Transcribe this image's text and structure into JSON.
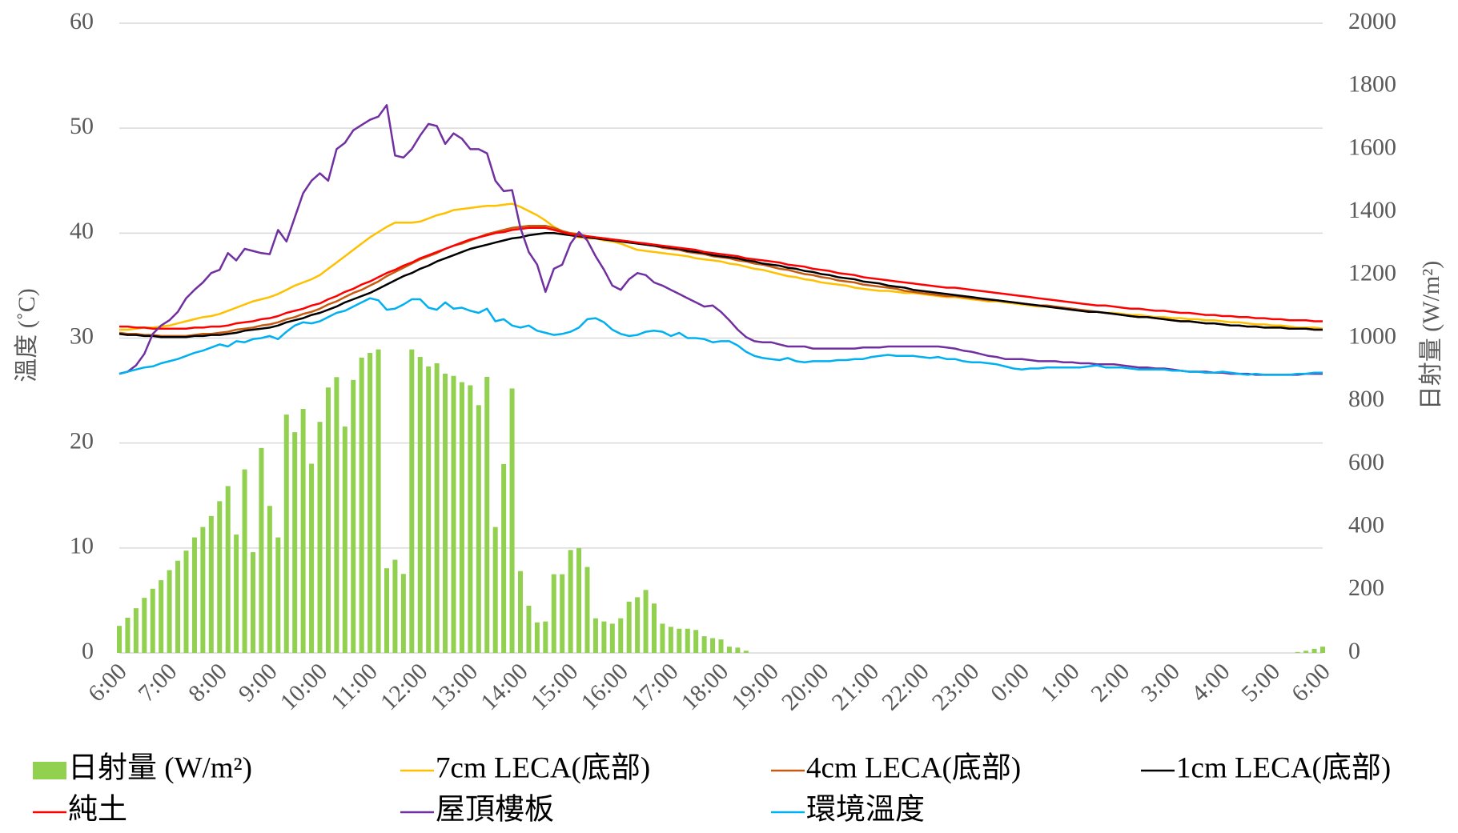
{
  "chart_data": {
    "type": "line",
    "ylabel": "溫度 (˚C)",
    "y2label": "日射量 (W/m²)",
    "ylim": [
      0,
      60
    ],
    "yticks": [
      0,
      10,
      20,
      30,
      40,
      50,
      60
    ],
    "y2lim": [
      0,
      2000
    ],
    "y2ticks": [
      0,
      200,
      400,
      600,
      800,
      1000,
      1200,
      1400,
      1600,
      1800,
      2000
    ],
    "grid": true,
    "legend": "bottom",
    "categories": [
      "6:00",
      null,
      null,
      null,
      null,
      null,
      "7:00",
      null,
      null,
      null,
      null,
      null,
      "8:00",
      null,
      null,
      null,
      null,
      null,
      "9:00",
      null,
      null,
      null,
      null,
      null,
      "10:00",
      null,
      null,
      null,
      null,
      null,
      "11:00",
      null,
      null,
      null,
      null,
      null,
      "12:00",
      null,
      null,
      null,
      null,
      null,
      "13:00",
      null,
      null,
      null,
      null,
      null,
      "14:00",
      null,
      null,
      null,
      null,
      null,
      "15:00",
      null,
      null,
      null,
      null,
      null,
      "16:00",
      null,
      null,
      null,
      null,
      null,
      "17:00",
      null,
      null,
      null,
      null,
      null,
      "18:00",
      null,
      null,
      null,
      null,
      null,
      "19:00",
      null,
      null,
      null,
      null,
      null,
      "20:00",
      null,
      null,
      null,
      null,
      null,
      "21:00",
      null,
      null,
      null,
      null,
      null,
      "22:00",
      null,
      null,
      null,
      null,
      null,
      "23:00",
      null,
      null,
      null,
      null,
      null,
      "0:00",
      null,
      null,
      null,
      null,
      null,
      "1:00",
      null,
      null,
      null,
      null,
      null,
      "2:00",
      null,
      null,
      null,
      null,
      null,
      "3:00",
      null,
      null,
      null,
      null,
      null,
      "4:00",
      null,
      null,
      null,
      null,
      null,
      "5:00",
      null,
      null,
      null,
      null,
      null,
      "6:00"
    ],
    "series": [
      {
        "name": "日射量 (W/m²)",
        "type": "bar",
        "axis": "y2",
        "color": "#92d050",
        "values": [
          86,
          112,
          142,
          175,
          204,
          231,
          263,
          293,
          325,
          367,
          400,
          435,
          482,
          530,
          376,
          583,
          320,
          651,
          467,
          367,
          757,
          701,
          775,
          601,
          734,
          843,
          876,
          719,
          867,
          938,
          953,
          964,
          269,
          296,
          251,
          964,
          940,
          910,
          920,
          887,
          880,
          860,
          850,
          787,
          877,
          400,
          600,
          840,
          260,
          150,
          97,
          100,
          250,
          250,
          327,
          333,
          273,
          110,
          100,
          93,
          110,
          163,
          177,
          200,
          157,
          93,
          83,
          77,
          77,
          73,
          53,
          47,
          43,
          20,
          17,
          7,
          0,
          0,
          0,
          0,
          0,
          0,
          0,
          0,
          0,
          0,
          0,
          0,
          0,
          0,
          0,
          0,
          0,
          0,
          0,
          0,
          0,
          0,
          0,
          0,
          0,
          0,
          0,
          0,
          0,
          0,
          0,
          0,
          0,
          0,
          0,
          0,
          0,
          0,
          0,
          0,
          0,
          0,
          0,
          0,
          0,
          0,
          0,
          0,
          0,
          0,
          0,
          0,
          0,
          0,
          0,
          0,
          0,
          0,
          0,
          0,
          0,
          0,
          0,
          0,
          0,
          3,
          7,
          13,
          20
        ]
      },
      {
        "name": "7cm LECA(底部)",
        "type": "line",
        "color": "#ffc000",
        "values": [
          30.8,
          30.8,
          30.9,
          31.0,
          31.0,
          31.1,
          31.2,
          31.4,
          31.6,
          31.8,
          32.0,
          32.1,
          32.3,
          32.6,
          32.9,
          33.2,
          33.5,
          33.7,
          33.9,
          34.2,
          34.6,
          35.0,
          35.3,
          35.6,
          36.0,
          36.6,
          37.2,
          37.8,
          38.4,
          39.0,
          39.6,
          40.1,
          40.6,
          41.0,
          41.0,
          41.0,
          41.1,
          41.4,
          41.7,
          41.9,
          42.2,
          42.3,
          42.4,
          42.5,
          42.6,
          42.6,
          42.7,
          42.8,
          42.5,
          42.1,
          41.7,
          41.2,
          40.6,
          40.2,
          39.8,
          39.6,
          39.5,
          39.5,
          39.3,
          39.2,
          39.0,
          38.7,
          38.4,
          38.3,
          38.2,
          38.1,
          38.0,
          37.9,
          37.8,
          37.6,
          37.5,
          37.4,
          37.3,
          37.1,
          37.0,
          36.8,
          36.6,
          36.5,
          36.3,
          36.1,
          35.9,
          35.8,
          35.6,
          35.5,
          35.3,
          35.2,
          35.1,
          35.0,
          34.8,
          34.7,
          34.6,
          34.5,
          34.5,
          34.4,
          34.3,
          34.3,
          34.2,
          34.1,
          34.0,
          33.9,
          33.9,
          33.8,
          33.7,
          33.6,
          33.5,
          33.5,
          33.4,
          33.3,
          33.2,
          33.1,
          33.0,
          33.0,
          32.9,
          32.8,
          32.7,
          32.6,
          32.6,
          32.5,
          32.4,
          32.4,
          32.3,
          32.2,
          32.2,
          32.1,
          32.0,
          32.0,
          31.9,
          31.9,
          31.8,
          31.8,
          31.7,
          31.7,
          31.6,
          31.5,
          31.5,
          31.4,
          31.3,
          31.3,
          31.2,
          31.2,
          31.1,
          31.0,
          31.0,
          31.0,
          30.9
        ]
      },
      {
        "name": "4cm LECA(底部)",
        "type": "line",
        "color": "#c55a11",
        "values": [
          30.5,
          30.4,
          30.4,
          30.3,
          30.3,
          30.2,
          30.2,
          30.2,
          30.2,
          30.3,
          30.4,
          30.4,
          30.5,
          30.6,
          30.8,
          30.9,
          31.0,
          31.2,
          31.3,
          31.5,
          31.8,
          32.0,
          32.3,
          32.5,
          32.8,
          33.2,
          33.5,
          33.9,
          34.3,
          34.6,
          35.0,
          35.4,
          35.9,
          36.3,
          36.7,
          37.1,
          37.5,
          37.8,
          38.1,
          38.5,
          38.8,
          39.0,
          39.3,
          39.6,
          39.9,
          40.1,
          40.3,
          40.5,
          40.6,
          40.7,
          40.7,
          40.7,
          40.5,
          40.2,
          40.0,
          39.9,
          39.7,
          39.6,
          39.5,
          39.4,
          39.3,
          39.2,
          39.0,
          38.9,
          38.8,
          38.6,
          38.5,
          38.4,
          38.2,
          38.1,
          38.0,
          37.8,
          37.7,
          37.6,
          37.4,
          37.3,
          37.1,
          37.0,
          36.8,
          36.6,
          36.5,
          36.3,
          36.1,
          36.0,
          35.8,
          35.7,
          35.5,
          35.4,
          35.3,
          35.1,
          35.0,
          34.9,
          34.8,
          34.7,
          34.5,
          34.4,
          34.3,
          34.2,
          34.1,
          34.0,
          34.0,
          33.9,
          33.8,
          33.7,
          33.6,
          33.6,
          33.5,
          33.4,
          33.3,
          33.2,
          33.1,
          33.1,
          33.0,
          32.9,
          32.8,
          32.7,
          32.6,
          32.5,
          32.4,
          32.3,
          32.2,
          32.1,
          32.0,
          32.0,
          31.9,
          31.8,
          31.7,
          31.6,
          31.6,
          31.5,
          31.4,
          31.4,
          31.3,
          31.2,
          31.2,
          31.1,
          31.1,
          31.0,
          31.0,
          31.0,
          30.9,
          30.9,
          30.9,
          30.8,
          30.8
        ]
      },
      {
        "name": "1cm LECA(底部)",
        "type": "line",
        "color": "#000000",
        "values": [
          30.4,
          30.3,
          30.3,
          30.2,
          30.2,
          30.1,
          30.1,
          30.1,
          30.1,
          30.2,
          30.2,
          30.3,
          30.3,
          30.4,
          30.5,
          30.7,
          30.8,
          30.9,
          31.0,
          31.2,
          31.5,
          31.7,
          31.9,
          32.2,
          32.4,
          32.7,
          33.0,
          33.4,
          33.7,
          34.0,
          34.3,
          34.7,
          35.1,
          35.5,
          35.9,
          36.2,
          36.6,
          36.9,
          37.3,
          37.6,
          37.9,
          38.2,
          38.5,
          38.7,
          38.9,
          39.1,
          39.3,
          39.5,
          39.6,
          39.8,
          39.9,
          40.0,
          40.0,
          39.9,
          39.8,
          39.7,
          39.6,
          39.5,
          39.4,
          39.3,
          39.2,
          39.1,
          39.0,
          38.9,
          38.8,
          38.7,
          38.6,
          38.5,
          38.3,
          38.2,
          38.1,
          37.9,
          37.8,
          37.7,
          37.6,
          37.4,
          37.3,
          37.1,
          37.0,
          36.9,
          36.7,
          36.6,
          36.4,
          36.3,
          36.1,
          36.0,
          35.8,
          35.7,
          35.6,
          35.4,
          35.3,
          35.2,
          35.0,
          34.9,
          34.8,
          34.6,
          34.5,
          34.4,
          34.3,
          34.2,
          34.1,
          34.0,
          33.9,
          33.8,
          33.7,
          33.6,
          33.5,
          33.4,
          33.3,
          33.2,
          33.1,
          33.0,
          32.9,
          32.8,
          32.7,
          32.6,
          32.5,
          32.5,
          32.4,
          32.3,
          32.2,
          32.1,
          32.0,
          32.0,
          31.9,
          31.8,
          31.7,
          31.6,
          31.6,
          31.5,
          31.4,
          31.4,
          31.3,
          31.2,
          31.2,
          31.1,
          31.1,
          31.0,
          31.0,
          31.0,
          30.9,
          30.9,
          30.9,
          30.8,
          30.8
        ]
      },
      {
        "name": "純土",
        "type": "line",
        "color": "#ff0000",
        "values": [
          31.1,
          31.1,
          31.0,
          31.0,
          30.9,
          30.9,
          30.9,
          30.9,
          30.9,
          31.0,
          31.0,
          31.1,
          31.1,
          31.2,
          31.4,
          31.5,
          31.6,
          31.8,
          31.9,
          32.1,
          32.4,
          32.6,
          32.8,
          33.1,
          33.3,
          33.7,
          34.0,
          34.4,
          34.7,
          35.1,
          35.4,
          35.8,
          36.2,
          36.5,
          36.9,
          37.2,
          37.6,
          37.9,
          38.2,
          38.5,
          38.8,
          39.1,
          39.4,
          39.6,
          39.8,
          40.0,
          40.1,
          40.3,
          40.4,
          40.5,
          40.5,
          40.5,
          40.3,
          40.1,
          39.9,
          39.8,
          39.7,
          39.6,
          39.5,
          39.4,
          39.3,
          39.2,
          39.1,
          39.0,
          38.9,
          38.8,
          38.7,
          38.6,
          38.5,
          38.4,
          38.2,
          38.1,
          38.0,
          37.9,
          37.8,
          37.6,
          37.5,
          37.4,
          37.3,
          37.2,
          37.0,
          36.9,
          36.8,
          36.6,
          36.5,
          36.4,
          36.2,
          36.1,
          36.0,
          35.8,
          35.7,
          35.6,
          35.5,
          35.4,
          35.3,
          35.2,
          35.1,
          35.0,
          34.9,
          34.8,
          34.8,
          34.7,
          34.6,
          34.5,
          34.4,
          34.3,
          34.2,
          34.1,
          34.0,
          33.9,
          33.8,
          33.7,
          33.6,
          33.5,
          33.4,
          33.3,
          33.2,
          33.1,
          33.1,
          33.0,
          32.9,
          32.8,
          32.8,
          32.7,
          32.6,
          32.6,
          32.5,
          32.4,
          32.4,
          32.3,
          32.2,
          32.2,
          32.1,
          32.1,
          32.0,
          32.0,
          31.9,
          31.9,
          31.8,
          31.8,
          31.7,
          31.7,
          31.7,
          31.6,
          31.6
        ]
      },
      {
        "name": "屋頂樓板",
        "type": "line",
        "color": "#7030a0",
        "values": [
          26.6,
          26.8,
          27.4,
          28.5,
          30.4,
          31.2,
          31.7,
          32.5,
          33.8,
          34.6,
          35.3,
          36.2,
          36.5,
          38.1,
          37.4,
          38.5,
          38.3,
          38.1,
          38.0,
          40.3,
          39.2,
          41.5,
          43.8,
          45.0,
          45.7,
          45.0,
          48.0,
          48.6,
          49.8,
          50.3,
          50.8,
          51.1,
          52.2,
          47.4,
          47.2,
          48.0,
          49.3,
          50.4,
          50.2,
          48.5,
          49.5,
          49.0,
          48.0,
          48.0,
          47.6,
          45.0,
          44.0,
          44.1,
          40.5,
          38.2,
          37.0,
          34.4,
          36.6,
          37.0,
          39.0,
          40.1,
          39.3,
          37.8,
          36.5,
          35.0,
          34.6,
          35.6,
          36.2,
          36.0,
          35.3,
          35.0,
          34.6,
          34.2,
          33.8,
          33.4,
          33.0,
          33.1,
          32.5,
          31.7,
          30.8,
          30.1,
          29.7,
          29.6,
          29.6,
          29.4,
          29.2,
          29.2,
          29.2,
          29.0,
          29.0,
          29.0,
          29.0,
          29.0,
          29.0,
          29.1,
          29.1,
          29.1,
          29.2,
          29.2,
          29.2,
          29.2,
          29.2,
          29.2,
          29.2,
          29.1,
          29.0,
          28.8,
          28.7,
          28.5,
          28.3,
          28.2,
          28.0,
          28.0,
          28.0,
          27.9,
          27.8,
          27.8,
          27.8,
          27.7,
          27.7,
          27.6,
          27.6,
          27.5,
          27.5,
          27.5,
          27.4,
          27.3,
          27.2,
          27.2,
          27.1,
          27.1,
          27.0,
          26.9,
          26.8,
          26.8,
          26.8,
          26.7,
          26.7,
          26.6,
          26.6,
          26.6,
          26.5,
          26.5,
          26.5,
          26.5,
          26.5,
          26.5,
          26.6,
          26.6,
          26.6
        ]
      },
      {
        "name": "環境溫度",
        "type": "line",
        "color": "#00b0f0",
        "values": [
          26.6,
          26.8,
          27.0,
          27.2,
          27.3,
          27.6,
          27.8,
          28.0,
          28.3,
          28.6,
          28.8,
          29.1,
          29.4,
          29.2,
          29.7,
          29.6,
          29.9,
          30.0,
          30.2,
          29.9,
          30.6,
          31.2,
          31.5,
          31.4,
          31.6,
          32.0,
          32.4,
          32.6,
          33.0,
          33.4,
          33.8,
          33.6,
          32.7,
          32.8,
          33.2,
          33.7,
          33.7,
          32.9,
          32.7,
          33.4,
          32.8,
          32.9,
          32.6,
          32.4,
          32.8,
          31.6,
          31.8,
          31.2,
          31.0,
          31.2,
          30.7,
          30.5,
          30.3,
          30.4,
          30.6,
          31.0,
          31.8,
          31.9,
          31.5,
          30.8,
          30.4,
          30.2,
          30.3,
          30.6,
          30.7,
          30.6,
          30.2,
          30.5,
          30.0,
          30.0,
          29.9,
          29.6,
          29.7,
          29.7,
          29.3,
          28.7,
          28.3,
          28.1,
          28.0,
          27.9,
          28.1,
          27.8,
          27.7,
          27.8,
          27.8,
          27.8,
          27.9,
          27.9,
          28.0,
          28.0,
          28.2,
          28.3,
          28.4,
          28.3,
          28.3,
          28.3,
          28.2,
          28.1,
          28.2,
          28.0,
          28.0,
          27.8,
          27.7,
          27.7,
          27.6,
          27.5,
          27.3,
          27.1,
          27.0,
          27.1,
          27.1,
          27.2,
          27.2,
          27.2,
          27.2,
          27.2,
          27.3,
          27.4,
          27.2,
          27.2,
          27.2,
          27.1,
          27.0,
          27.0,
          27.0,
          27.0,
          26.9,
          26.9,
          26.8,
          26.8,
          26.7,
          26.7,
          26.8,
          26.7,
          26.6,
          26.5,
          26.6,
          26.5,
          26.5,
          26.5,
          26.5,
          26.6,
          26.6,
          26.7,
          26.7
        ]
      }
    ]
  }
}
